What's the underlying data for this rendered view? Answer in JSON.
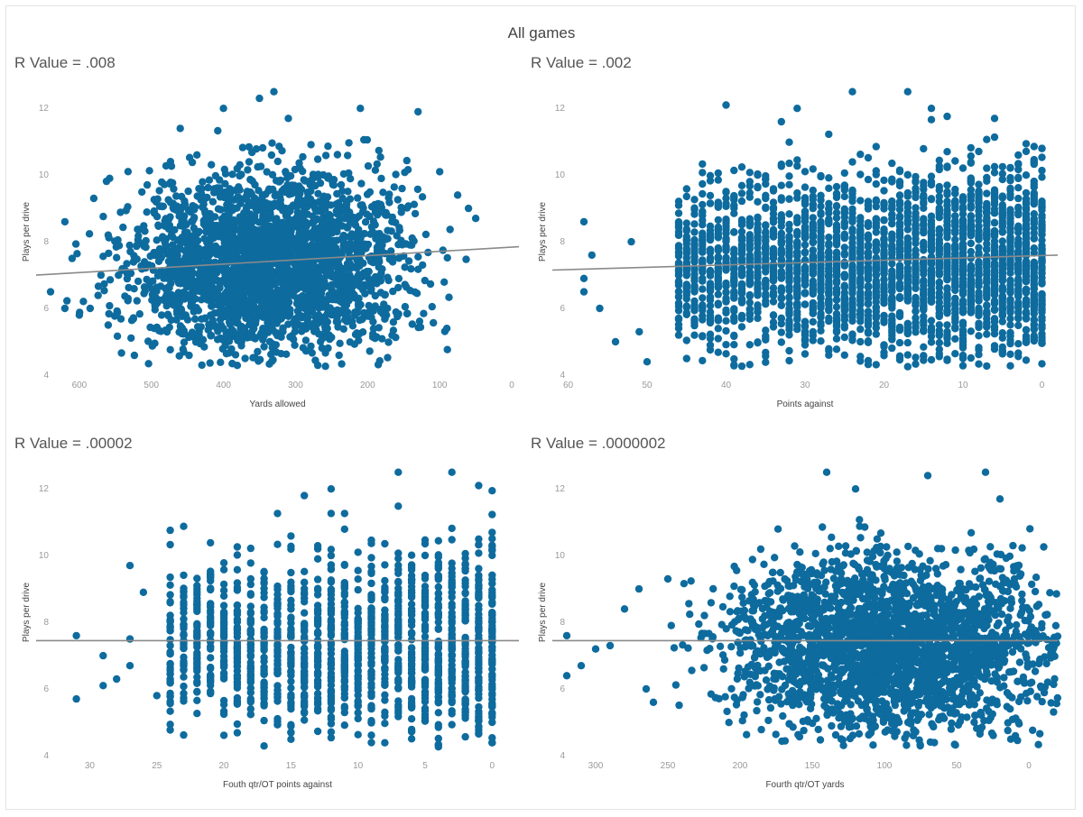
{
  "page_title": "All games",
  "colors": {
    "points": "#0e6b9e",
    "trend": "#8a8a8a",
    "ticks": "#999999"
  },
  "chart_data": [
    {
      "type": "scatter",
      "r_label": "R Value  = .008",
      "xlabel": "Yards allowed",
      "ylabel": "Plays per drive",
      "xlim": [
        660,
        -10
      ],
      "ylim": [
        4,
        12.6
      ],
      "x_reversed": true,
      "x_ticks": [
        600,
        500,
        400,
        300,
        200,
        100,
        0
      ],
      "y_ticks": [
        4,
        6,
        8,
        10,
        12
      ],
      "trendline": {
        "x": [
          660,
          -10
        ],
        "y": [
          7.0,
          7.85
        ]
      },
      "cloud": {
        "center_x": 340,
        "center_y": 7.3,
        "spread_x": 95,
        "spread_y": 1.3,
        "count": 2600
      },
      "outliers": [
        [
          640,
          6.5
        ],
        [
          620,
          8.6
        ],
        [
          610,
          7.5
        ],
        [
          600,
          5.8
        ],
        [
          585,
          6.0
        ],
        [
          580,
          9.3
        ],
        [
          570,
          7.0
        ],
        [
          560,
          5.5
        ],
        [
          620,
          6.0
        ],
        [
          560,
          8.2
        ],
        [
          130,
          11.9
        ],
        [
          100,
          10.1
        ],
        [
          75,
          9.4
        ],
        [
          50,
          8.7
        ],
        [
          60,
          9.0
        ],
        [
          90,
          5.4
        ],
        [
          330,
          12.5
        ],
        [
          350,
          12.3
        ],
        [
          400,
          12.0
        ],
        [
          310,
          11.7
        ],
        [
          460,
          11.4
        ],
        [
          210,
          12.0
        ],
        [
          430,
          4.3
        ],
        [
          370,
          4.5
        ]
      ]
    },
    {
      "type": "scatter",
      "r_label": "R Value = .002",
      "xlabel": "Points against",
      "ylabel": "Plays per drive",
      "xlim": [
        62,
        -2
      ],
      "ylim": [
        4,
        12.6
      ],
      "x_reversed": true,
      "x_ticks": [
        60,
        50,
        40,
        30,
        20,
        10,
        0
      ],
      "y_ticks": [
        4,
        6,
        8,
        10,
        12
      ],
      "trendline": {
        "x": [
          62,
          -2
        ],
        "y": [
          7.15,
          7.6
        ]
      },
      "columns": {
        "values": [
          46,
          45,
          44,
          43,
          42,
          41,
          40,
          39,
          38,
          37,
          36,
          35,
          34,
          33,
          32,
          31,
          30,
          29,
          28,
          27,
          26,
          25,
          24,
          23,
          22,
          21,
          20,
          19,
          18,
          17,
          16,
          15,
          14,
          13,
          12,
          11,
          10,
          9,
          8,
          7,
          6,
          5,
          4,
          3,
          2,
          1,
          0
        ],
        "center_y": 7.3,
        "spread_y": 1.3
      },
      "outliers": [
        [
          58,
          8.6
        ],
        [
          57,
          7.6
        ],
        [
          58,
          6.9
        ],
        [
          58,
          6.5
        ],
        [
          56,
          6.0
        ],
        [
          54,
          5.0
        ],
        [
          52,
          8.0
        ],
        [
          51,
          5.3
        ],
        [
          50,
          4.4
        ],
        [
          40,
          12.1
        ],
        [
          24,
          12.5
        ],
        [
          17,
          12.5
        ],
        [
          14,
          12.0
        ],
        [
          6,
          11.7
        ],
        [
          31,
          12.0
        ],
        [
          33,
          11.6
        ],
        [
          10,
          4.5
        ],
        [
          27,
          4.6
        ],
        [
          0,
          10.8
        ],
        [
          0,
          5.5
        ]
      ]
    },
    {
      "type": "scatter",
      "r_label": "R Value = .00002",
      "xlabel": "Fouth qtr/OT points against",
      "ylabel": "Plays per drive",
      "xlim": [
        34,
        -2
      ],
      "ylim": [
        4,
        12.6
      ],
      "x_reversed": true,
      "x_ticks": [
        30,
        25,
        20,
        15,
        10,
        5,
        0
      ],
      "y_ticks": [
        4,
        6,
        8,
        10,
        12
      ],
      "trendline": {
        "x": [
          34,
          -2
        ],
        "y": [
          7.45,
          7.45
        ]
      },
      "columns": {
        "values": [
          24,
          23,
          22,
          21,
          20,
          19,
          18,
          17,
          16,
          15,
          14,
          13,
          12,
          11,
          10,
          9,
          8,
          7,
          6,
          5,
          4,
          3,
          2,
          1,
          0
        ],
        "center_y": 7.3,
        "spread_y": 1.3
      },
      "outliers": [
        [
          31,
          7.6
        ],
        [
          31,
          5.7
        ],
        [
          29,
          7.0
        ],
        [
          29,
          6.1
        ],
        [
          28,
          6.3
        ],
        [
          27,
          9.7
        ],
        [
          27,
          7.5
        ],
        [
          27,
          6.7
        ],
        [
          26,
          8.9
        ],
        [
          25,
          5.8
        ],
        [
          14,
          11.8
        ],
        [
          12,
          12.0
        ],
        [
          7,
          12.5
        ],
        [
          3,
          12.5
        ],
        [
          1,
          12.1
        ],
        [
          13,
          4.2
        ]
      ]
    },
    {
      "type": "scatter",
      "r_label": "R Value = .0000002",
      "xlabel": "Fourth qtr/OT yards",
      "ylabel": "Plays per drive",
      "xlim": [
        330,
        -20
      ],
      "ylim": [
        4,
        12.6
      ],
      "x_reversed": true,
      "x_ticks": [
        300,
        250,
        200,
        150,
        100,
        50,
        0
      ],
      "y_ticks": [
        4,
        6,
        8,
        10,
        12
      ],
      "trendline": {
        "x": [
          330,
          -20
        ],
        "y": [
          7.45,
          7.45
        ]
      },
      "cloud": {
        "center_x": 95,
        "center_y": 7.3,
        "spread_x": 55,
        "spread_y": 1.3,
        "count": 2600
      },
      "outliers": [
        [
          320,
          7.6
        ],
        [
          320,
          6.4
        ],
        [
          300,
          7.2
        ],
        [
          310,
          6.7
        ],
        [
          290,
          7.3
        ],
        [
          280,
          8.4
        ],
        [
          270,
          9.0
        ],
        [
          265,
          6.0
        ],
        [
          260,
          5.6
        ],
        [
          250,
          9.3
        ],
        [
          140,
          12.5
        ],
        [
          120,
          12.0
        ],
        [
          70,
          12.4
        ],
        [
          30,
          12.5
        ],
        [
          20,
          11.7
        ],
        [
          10,
          9.3
        ],
        [
          5,
          8.3
        ],
        [
          130,
          4.5
        ],
        [
          80,
          4.6
        ]
      ]
    }
  ]
}
